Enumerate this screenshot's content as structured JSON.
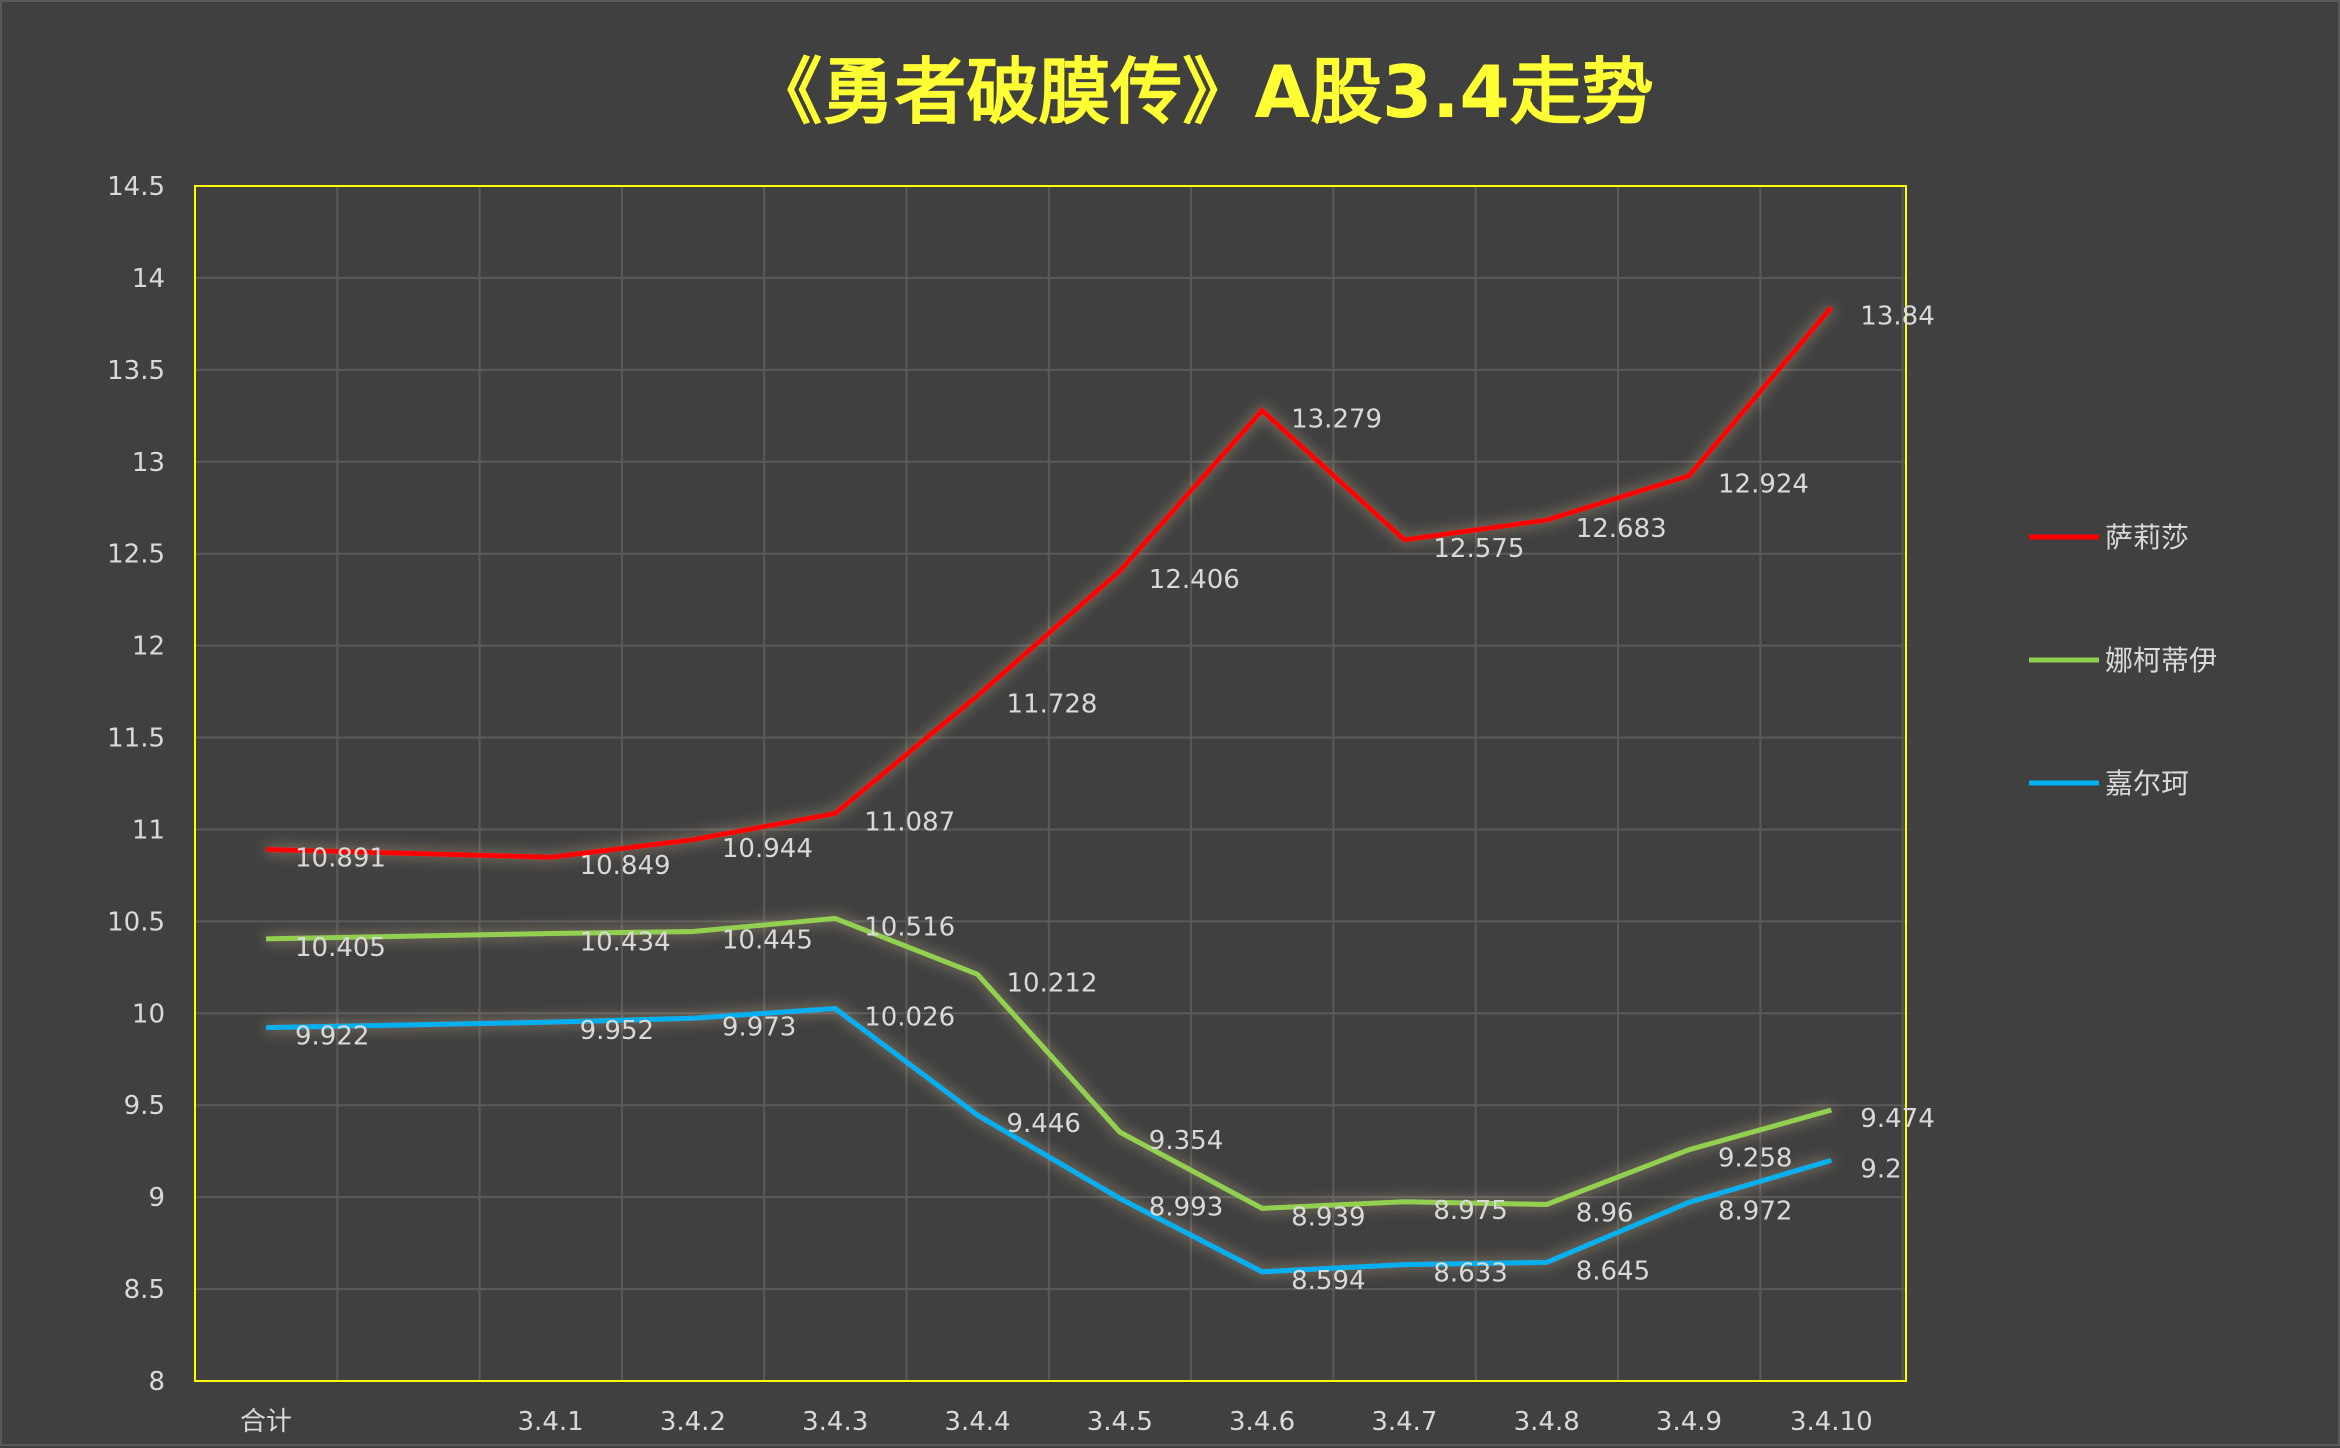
{
  "chart_data": {
    "type": "line",
    "title": "《勇者破膜传》A股3.4走势",
    "xlabel": "",
    "ylabel": "",
    "categories": [
      "合计",
      "",
      "3.4.1",
      "3.4.2",
      "3.4.3",
      "3.4.4",
      "3.4.5",
      "3.4.6",
      "3.4.7",
      "3.4.8",
      "3.4.9",
      "3.4.10"
    ],
    "ylim": [
      8,
      14.5
    ],
    "yticks": [
      8,
      8.5,
      9,
      9.5,
      10,
      10.5,
      11,
      11.5,
      12,
      12.5,
      13,
      13.5,
      14,
      14.5
    ],
    "grid": true,
    "legend_position": "right",
    "series": [
      {
        "name": "萨莉莎",
        "color": "#ff0000",
        "values": [
          10.891,
          null,
          10.849,
          10.944,
          11.087,
          11.728,
          12.406,
          13.279,
          12.575,
          12.683,
          12.924,
          13.84
        ]
      },
      {
        "name": "娜柯蒂伊",
        "color": "#92d050",
        "values": [
          10.405,
          null,
          10.434,
          10.445,
          10.516,
          10.212,
          9.354,
          8.939,
          8.975,
          8.96,
          9.258,
          9.474
        ]
      },
      {
        "name": "嘉尔珂",
        "color": "#00b0f0",
        "values": [
          9.922,
          null,
          9.952,
          9.973,
          10.026,
          9.446,
          8.993,
          8.594,
          8.633,
          8.645,
          8.972,
          9.2
        ]
      }
    ],
    "value_labels": [
      [
        "10.891",
        null,
        "10.849",
        "10.944",
        "11.087",
        "11.728",
        "12.406",
        "13.279",
        "12.575",
        "12.683",
        "12.924",
        "13.84"
      ],
      [
        "10.405",
        null,
        "10.434",
        "10.445",
        "10.516",
        "10.212",
        "9.354",
        "8.939",
        "8.975",
        "8.96",
        "9.258",
        "9.474"
      ],
      [
        "9.922",
        null,
        "9.952",
        "9.973",
        "10.026",
        "9.446",
        "8.993",
        "8.594",
        "8.633",
        "8.645",
        "8.972",
        "9.2"
      ]
    ],
    "colors": {
      "background": "#404040",
      "plot_border": "#ffff00",
      "grid": "#5a5a5a",
      "title": "#ffff33",
      "text": "#d9d9d9"
    }
  }
}
